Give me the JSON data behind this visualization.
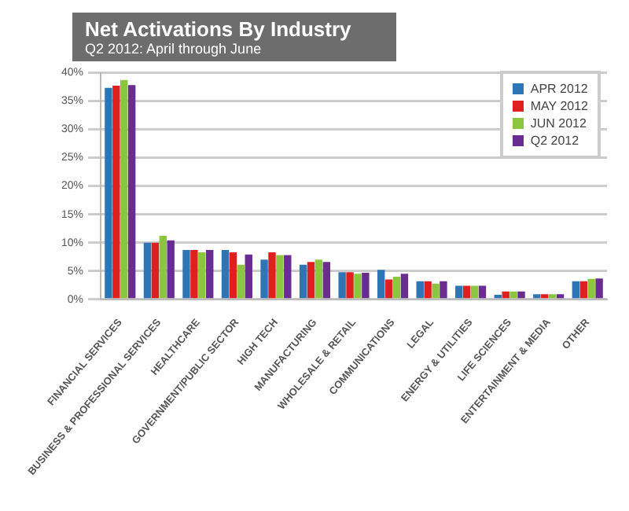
{
  "chart_data": {
    "type": "bar",
    "title": "Net Activations By Industry",
    "subtitle": "Q2 2012: April through June",
    "categories": [
      "FINANCIAL SERVICES",
      "BUSINESS & PROFESSIONAL SERVICES",
      "HEALTHCARE",
      "GOVERNMENT/PUBLIC SECTOR",
      "HIGH TECH",
      "MANUFACTURING",
      "WHOLESALE & RETAIL",
      "COMMUNICATIONS",
      "LEGAL",
      "ENERGY & UTILITIES",
      "LIFE SCIENCES",
      "ENTERTAINMENT & MEDIA",
      "OTHER"
    ],
    "series": [
      {
        "name": "APR 2012",
        "color": "#2e75b6",
        "values": [
          37.3,
          10,
          8.7,
          8.7,
          7.0,
          6.1,
          4.8,
          5.2,
          3.2,
          2.4,
          0.8,
          0.9,
          3.2
        ]
      },
      {
        "name": "MAY 2012",
        "color": "#e02020",
        "values": [
          37.7,
          10,
          8.7,
          8.3,
          8.3,
          6.6,
          4.8,
          3.5,
          3.2,
          2.4,
          1.4,
          0.9,
          3.2
        ]
      },
      {
        "name": "JUN 2012",
        "color": "#8cc63f",
        "values": [
          38.7,
          11.2,
          8.3,
          6.1,
          7.8,
          7.0,
          4.5,
          4.0,
          2.8,
          2.4,
          1.4,
          0.9,
          3.6
        ]
      },
      {
        "name": "Q2 2012",
        "color": "#6a2c91",
        "values": [
          37.8,
          10.4,
          8.7,
          7.9,
          7.8,
          6.6,
          4.7,
          4.5,
          3.2,
          2.4,
          1.4,
          0.9,
          3.7
        ]
      }
    ],
    "ylim": [
      0,
      40
    ],
    "yticks": [
      {
        "value": 0,
        "label": "0%"
      },
      {
        "value": 5,
        "label": "5%"
      },
      {
        "value": 10,
        "label": "10%"
      },
      {
        "value": 15,
        "label": "15%"
      },
      {
        "value": 20,
        "label": "20%"
      },
      {
        "value": 25,
        "label": "25%"
      },
      {
        "value": 30,
        "label": "30%"
      },
      {
        "value": 35,
        "label": "35%"
      },
      {
        "value": 40,
        "label": "40%"
      }
    ],
    "grid": "y",
    "legend": "top right"
  }
}
